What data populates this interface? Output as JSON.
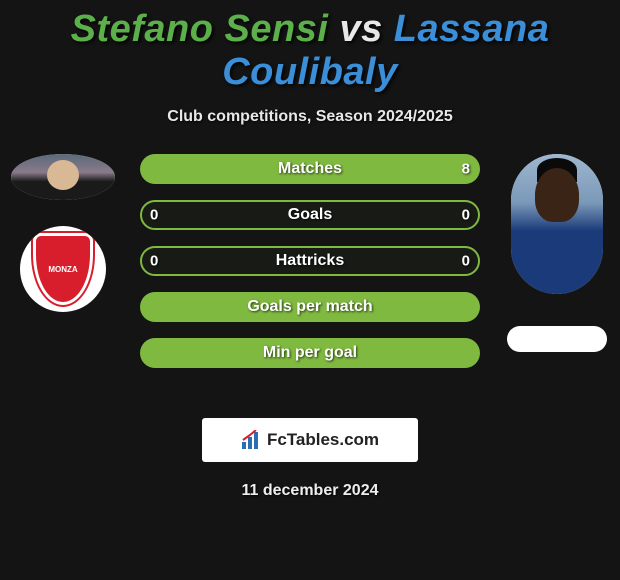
{
  "title": {
    "player1": "Stefano Sensi",
    "vs": "vs",
    "player2": "Lassana Coulibaly",
    "color_p1": "#5bb04a",
    "color_vs": "#e8e8e8",
    "color_p2": "#3a8fd8"
  },
  "subtitle": "Club competitions, Season 2024/2025",
  "bars": [
    {
      "label": "Matches",
      "left_val": "",
      "right_val": "8",
      "fill": "right",
      "fill_pct": 100,
      "bar_color": "#7fb93f"
    },
    {
      "label": "Goals",
      "left_val": "0",
      "right_val": "0",
      "fill": "none",
      "fill_pct": 0,
      "bar_color": "#7fb93f"
    },
    {
      "label": "Hattricks",
      "left_val": "0",
      "right_val": "0",
      "fill": "none",
      "fill_pct": 0,
      "bar_color": "#7fb93f"
    },
    {
      "label": "Goals per match",
      "left_val": "",
      "right_val": "",
      "fill": "full",
      "fill_pct": 100,
      "bar_color": "#7fb93f"
    },
    {
      "label": "Min per goal",
      "left_val": "",
      "right_val": "",
      "fill": "full",
      "fill_pct": 100,
      "bar_color": "#7fb93f"
    }
  ],
  "logo_text": "FcTables.com",
  "date": "11 december 2024",
  "colors": {
    "background": "#141414",
    "bar_green": "#7fb93f",
    "text_light": "#e8e8e8"
  },
  "left_team_label": "MONZA"
}
